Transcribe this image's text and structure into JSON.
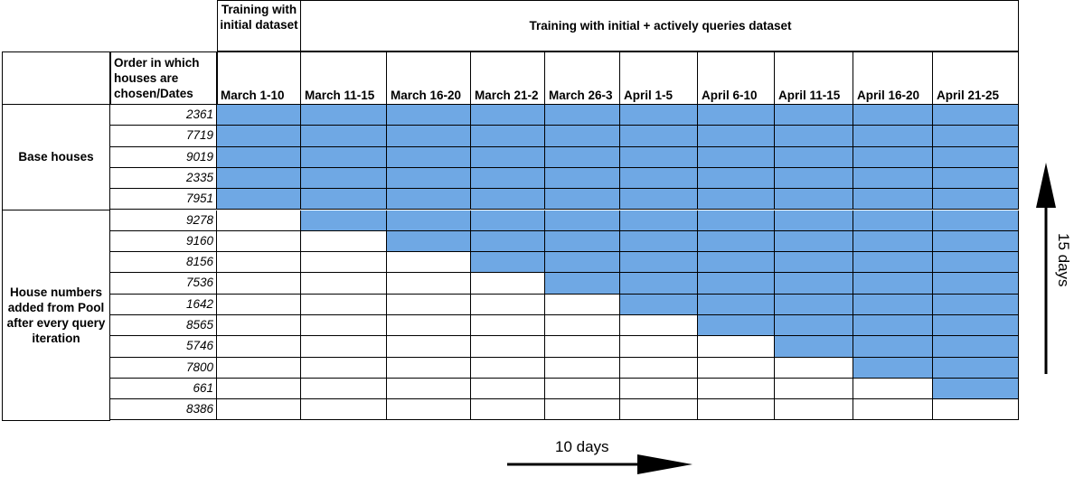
{
  "header": {
    "initial_group": "Training with initial dataset",
    "active_group": "Training with initial + actively queries dataset",
    "order_label": "Order in which houses are chosen/Dates"
  },
  "dates": [
    "March 1-10",
    "March 11-15",
    "March 16-20",
    "March 21-2",
    "March 26-3",
    "April 1-5",
    "April 6-10",
    "April 11-15",
    "April 16-20",
    "April 21-25"
  ],
  "groups": {
    "base": "Base houses",
    "added": "House numbers added from Pool after every query iteration"
  },
  "base_houses": [
    "2361",
    "7719",
    "9019",
    "2335",
    "7951"
  ],
  "added_houses": [
    "9278",
    "9160",
    "8156",
    "7536",
    "1642",
    "8565",
    "5746",
    "7800",
    "661",
    "8386"
  ],
  "axis": {
    "horizontal": "10 days",
    "vertical": "15 days"
  },
  "colors": {
    "fill": "#6fa8e4"
  }
}
